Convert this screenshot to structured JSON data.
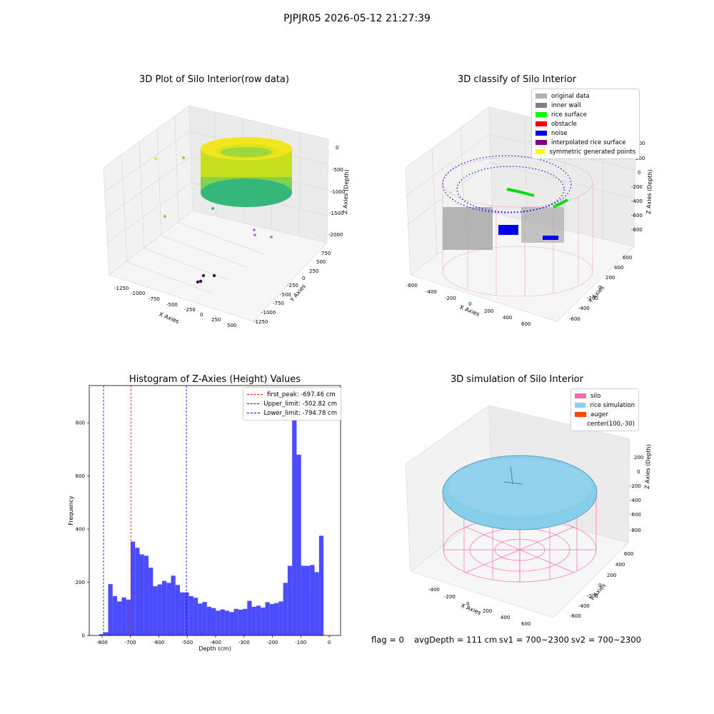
{
  "suptitle": "PJPJR05 2026-05-12 21:27:39",
  "panels": {
    "raw": {
      "title": "3D Plot of Silo Interior(row data)",
      "xlabel": "X Axies",
      "ylabel": "Y Axies",
      "zlabel": "Z Axies (Depth)",
      "xticks": [
        "-1250",
        "-1000",
        "-750",
        "-500",
        "-250",
        "0",
        "250",
        "500"
      ],
      "yticks": [
        "750",
        "500",
        "250",
        "0",
        "-250",
        "-500",
        "-750",
        "-1000",
        "-1250"
      ],
      "zticks": [
        "0",
        "-500",
        "-1000",
        "-1500",
        "-2000"
      ]
    },
    "classify": {
      "title": "3D classify of Silo Interior",
      "xlabel": "X Axies",
      "ylabel": "Y Axies",
      "zlabel": "Z Axies (Depth)",
      "xticks": [
        "-600",
        "-400",
        "-200",
        "0",
        "200",
        "400",
        "600"
      ],
      "yticks": [
        "600",
        "400",
        "200",
        "0",
        "-200",
        "-400",
        "-600"
      ],
      "zticks": [
        "400",
        "200",
        "0",
        "-200",
        "-400",
        "-600",
        "-800"
      ],
      "legend": [
        {
          "label": "original data",
          "color": "#b0b0b0"
        },
        {
          "label": "inner wall",
          "color": "#808080"
        },
        {
          "label": "rice surface",
          "color": "#00ff00"
        },
        {
          "label": "obstacle",
          "color": "#ff0000"
        },
        {
          "label": "noise",
          "color": "#0000ff"
        },
        {
          "label": "interpolated rice surface",
          "color": "#800080"
        },
        {
          "label": "symmetric generated points",
          "color": "#ffff00"
        }
      ]
    },
    "histogram": {
      "title": "Histogram of Z-Axies (Height) Values",
      "xlabel": "Depth (cm)",
      "ylabel": "Frequency",
      "legend": [
        {
          "label": "first_peak: -697.46 cm",
          "color": "#ff0000"
        },
        {
          "label": "Upper_limit: -502.82 cm",
          "color": "#0000cc"
        },
        {
          "label": "Lower_limit: -794.78 cm",
          "color": "#0000cc"
        }
      ]
    },
    "simulation": {
      "title": "3D simulation of Silo Interior",
      "xlabel": "X Axies",
      "ylabel": "Y Axies",
      "zlabel": "Z Axies (Depth)",
      "xticks": [
        "-400",
        "-200",
        "0",
        "200",
        "400",
        "600"
      ],
      "yticks": [
        "600",
        "400",
        "200",
        "0",
        "-200",
        "-400",
        "-600"
      ],
      "zticks": [
        "200",
        "0",
        "-200",
        "-400",
        "-600",
        "-800"
      ],
      "legend": [
        {
          "label": "silo",
          "color": "#ff69b4"
        },
        {
          "label": "rice simulation",
          "color": "#87ceeb"
        },
        {
          "label": "auger",
          "color": "#ff4500"
        },
        {
          "label": "center(100,-30)",
          "color": ""
        }
      ]
    }
  },
  "footer": {
    "flag": "flag = 0",
    "avg": "avgDepth = 111 cm",
    "sv1": "sv1 = 700~2300",
    "sv2": "sv2 = 700~2300"
  },
  "chart_data": {
    "type": "bar",
    "title": "Histogram of Z-Axies (Height) Values",
    "xlabel": "Depth (cm)",
    "ylabel": "Frequency",
    "xlim": [
      -845,
      40
    ],
    "ylim": [
      0,
      940
    ],
    "xticks": [
      -800,
      -700,
      -600,
      -500,
      -400,
      -300,
      -200,
      -100,
      0
    ],
    "yticks": [
      0,
      200,
      400,
      600,
      800
    ],
    "bin_width": 15.8,
    "bin_edges_start": -810,
    "values": [
      5,
      12,
      193,
      148,
      128,
      143,
      135,
      353,
      330,
      305,
      300,
      255,
      185,
      192,
      205,
      198,
      225,
      190,
      162,
      162,
      148,
      142,
      120,
      126,
      108,
      103,
      93,
      98,
      93,
      88,
      100,
      97,
      100,
      130,
      108,
      112,
      105,
      125,
      118,
      122,
      128,
      198,
      262,
      920,
      680,
      262,
      262,
      265,
      238,
      375
    ],
    "bar_color": "#4c4cff",
    "vlines": [
      {
        "x": -697.46,
        "color": "#ff0000"
      },
      {
        "x": -502.82,
        "color": "#0000cc"
      },
      {
        "x": -794.78,
        "color": "#0000cc"
      }
    ],
    "legend_position": "top-right"
  }
}
